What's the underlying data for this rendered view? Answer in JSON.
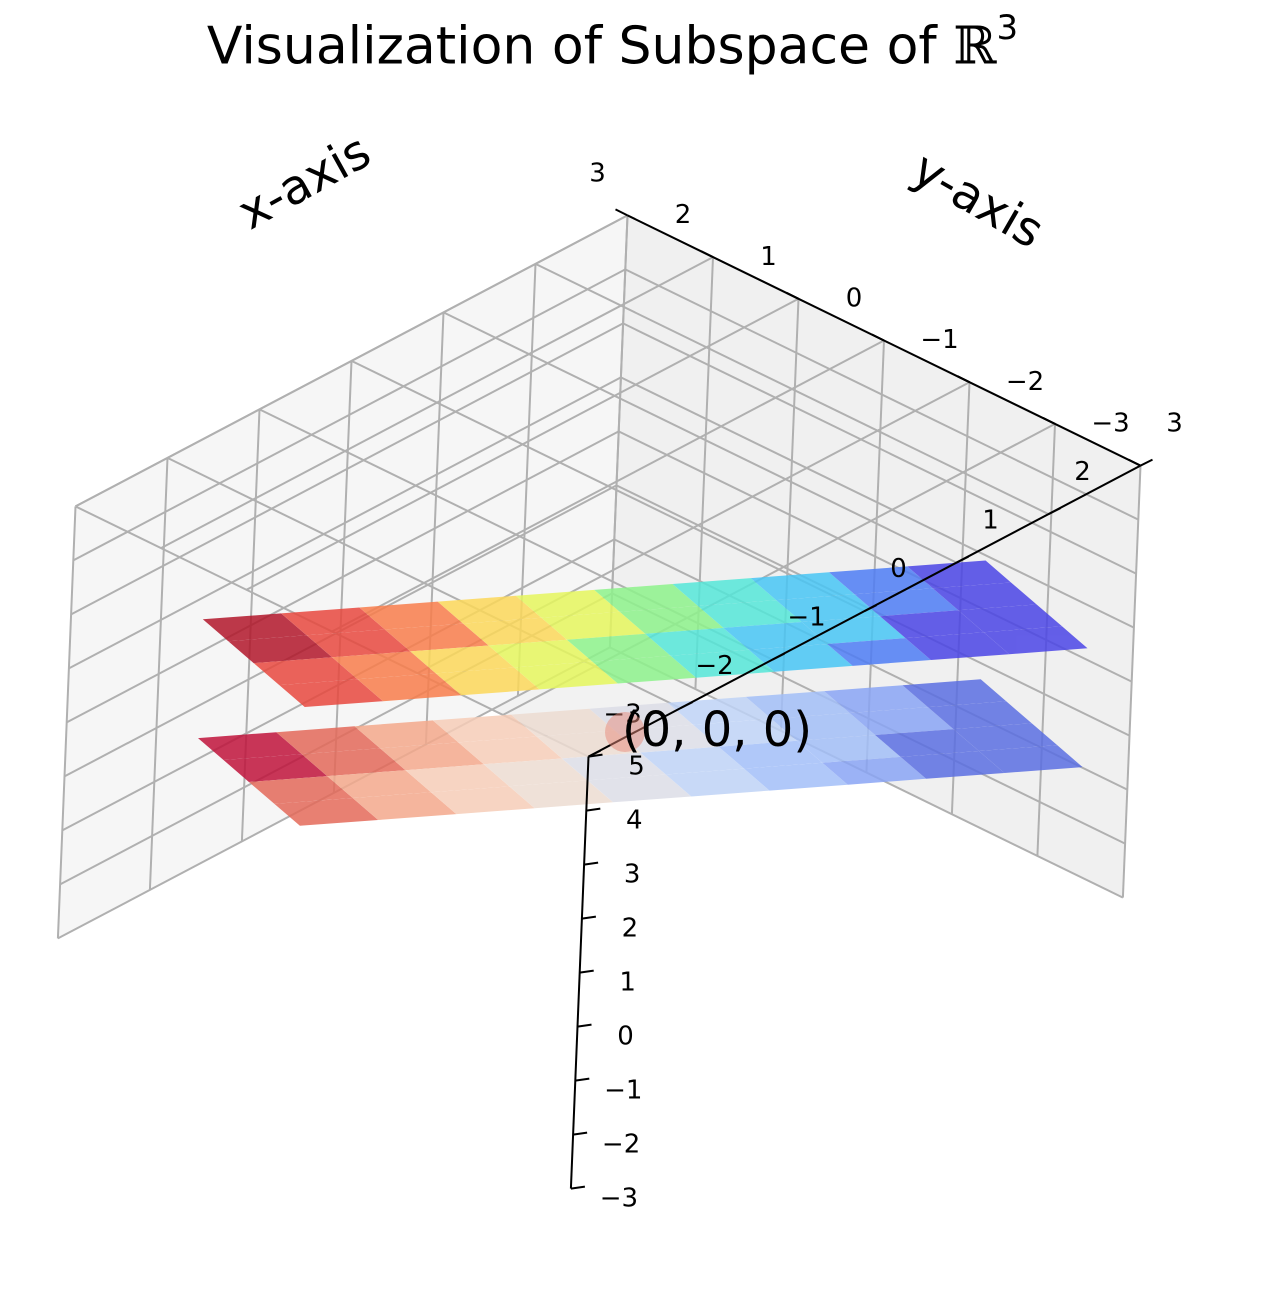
{
  "chart_data": {
    "type": "surface",
    "title": "Visualization of Subspace of ",
    "title_symbol": "ℝ",
    "title_superscript": "3",
    "xlabel": "x-axis",
    "ylabel": "y-axis",
    "zlabel": "",
    "xlim": [
      -3,
      3
    ],
    "ylim": [
      -3,
      3
    ],
    "zlim": [
      -3,
      5
    ],
    "x_ticks": [
      "−3",
      "−2",
      "−1",
      "0",
      "1",
      "2",
      "3"
    ],
    "y_ticks": [
      "−3",
      "−2",
      "−1",
      "0",
      "1",
      "2",
      "3"
    ],
    "z_ticks": [
      "−3",
      "−2",
      "−1",
      "0",
      "1",
      "2",
      "3",
      "4",
      "5"
    ],
    "grid": true,
    "annotation": {
      "text": "(0, 0, 0)",
      "x": 0,
      "y": 0,
      "z": 0
    },
    "surfaces": [
      {
        "name": "",
        "colormap": "jet",
        "alpha": 0.7,
        "equation_value_at_origin": 2
      },
      {
        "name": "",
        "colormap": "coolwarm",
        "alpha": 0.7,
        "equation_value_at_origin": 0
      }
    ],
    "colors": {
      "pane": "#f2f2f2",
      "grid": "#b0b0b0",
      "axis_line": "#000000",
      "origin_marker": "#e88a7a"
    }
  }
}
